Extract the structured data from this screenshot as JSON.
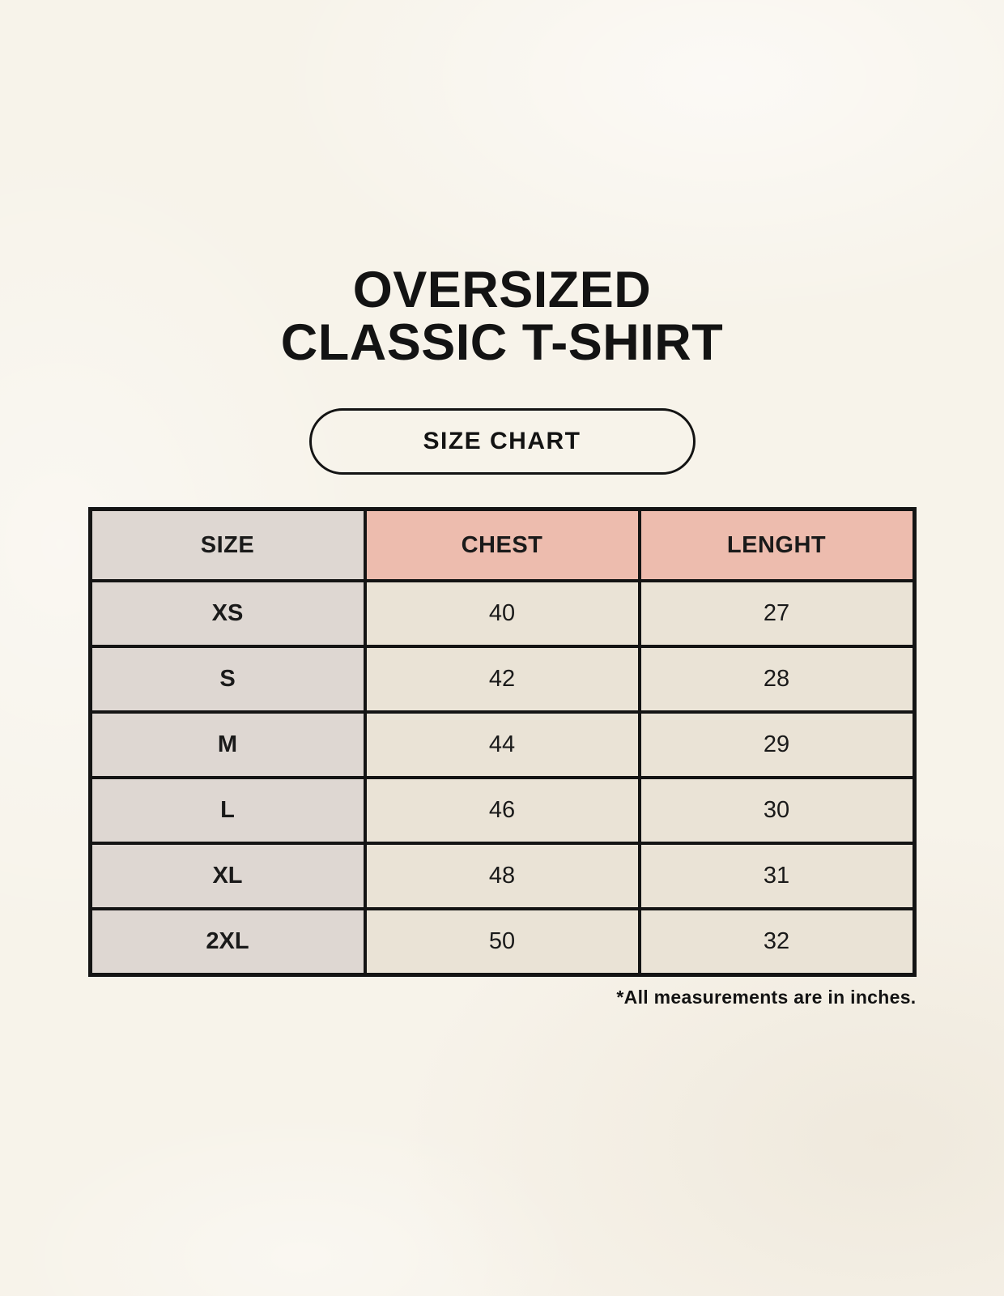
{
  "page": {
    "background_color": "#f7f3ea"
  },
  "title": {
    "line1": "OVERSIZED",
    "line2": "CLASSIC T-SHIRT"
  },
  "size_chart_button": {
    "label": "SIZE CHART"
  },
  "chart_data": {
    "type": "table",
    "title": "SIZE CHART",
    "columns": [
      "SIZE",
      "CHEST",
      "LENGHT"
    ],
    "rows": [
      [
        "XS",
        "40",
        "27"
      ],
      [
        "S",
        "42",
        "28"
      ],
      [
        "M",
        "44",
        "29"
      ],
      [
        "L",
        "46",
        "30"
      ],
      [
        "XL",
        "48",
        "31"
      ],
      [
        "2XL",
        "50",
        "32"
      ]
    ],
    "footnote": "*All measurements are in inches."
  },
  "colors": {
    "header_pink": "#edbcae",
    "size_column_gray": "#ded7d2",
    "data_cell_cream": "#eae3d6",
    "table_border": "#141414",
    "text": "#131313"
  }
}
